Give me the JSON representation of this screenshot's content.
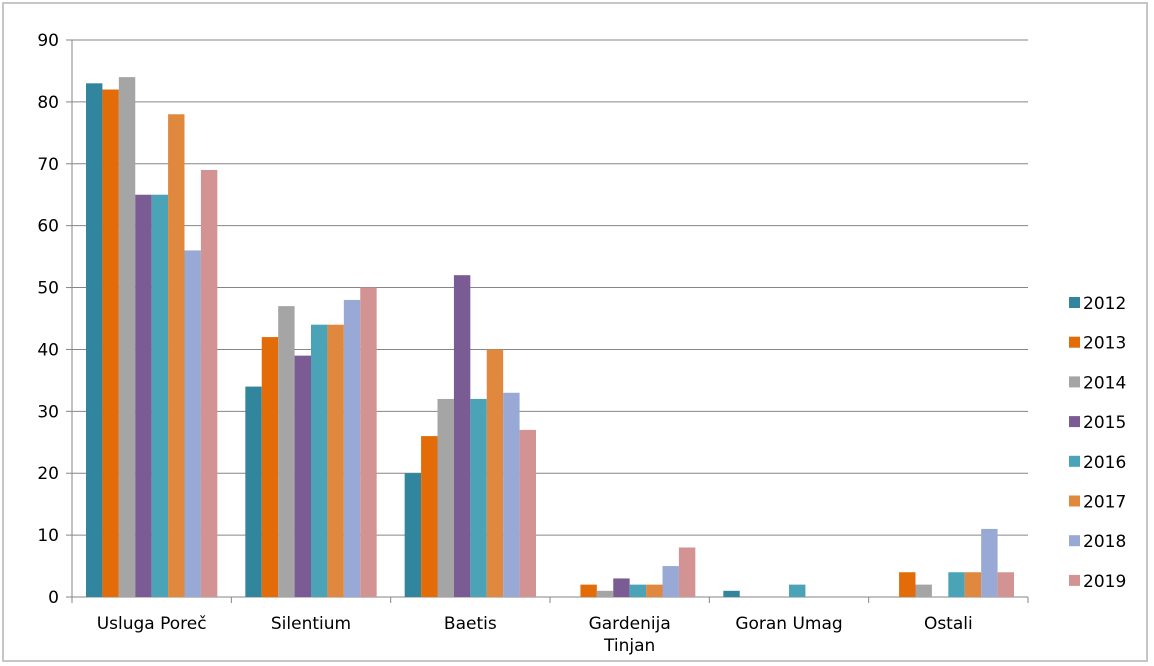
{
  "chart_data": {
    "type": "bar",
    "categories": [
      "Usluga Poreč",
      "Silentium",
      "Baetis",
      "Gardenija Tinjan",
      "Goran Umag",
      "Ostali"
    ],
    "series": [
      {
        "name": "2012",
        "color": "#31859c",
        "values": [
          83,
          34,
          20,
          0,
          1,
          0
        ]
      },
      {
        "name": "2013",
        "color": "#e36c09",
        "values": [
          82,
          42,
          26,
          2,
          0,
          4
        ]
      },
      {
        "name": "2014",
        "color": "#a5a5a5",
        "values": [
          84,
          47,
          32,
          1,
          0,
          2
        ]
      },
      {
        "name": "2015",
        "color": "#7b5b94",
        "values": [
          65,
          39,
          52,
          3,
          0,
          0
        ]
      },
      {
        "name": "2016",
        "color": "#4aa3b6",
        "values": [
          65,
          44,
          32,
          2,
          2,
          4
        ]
      },
      {
        "name": "2017",
        "color": "#e0883d",
        "values": [
          78,
          44,
          40,
          2,
          0,
          4
        ]
      },
      {
        "name": "2018",
        "color": "#97a9d4",
        "values": [
          56,
          48,
          33,
          5,
          0,
          11
        ]
      },
      {
        "name": "2019",
        "color": "#d39393",
        "values": [
          69,
          50,
          27,
          8,
          0,
          4
        ]
      }
    ],
    "ylim": [
      0,
      90
    ],
    "yticks": [
      0,
      10,
      20,
      30,
      40,
      50,
      60,
      70,
      80,
      90
    ],
    "grid": true,
    "legend": "right",
    "title": "",
    "xlabel": "",
    "ylabel": ""
  }
}
